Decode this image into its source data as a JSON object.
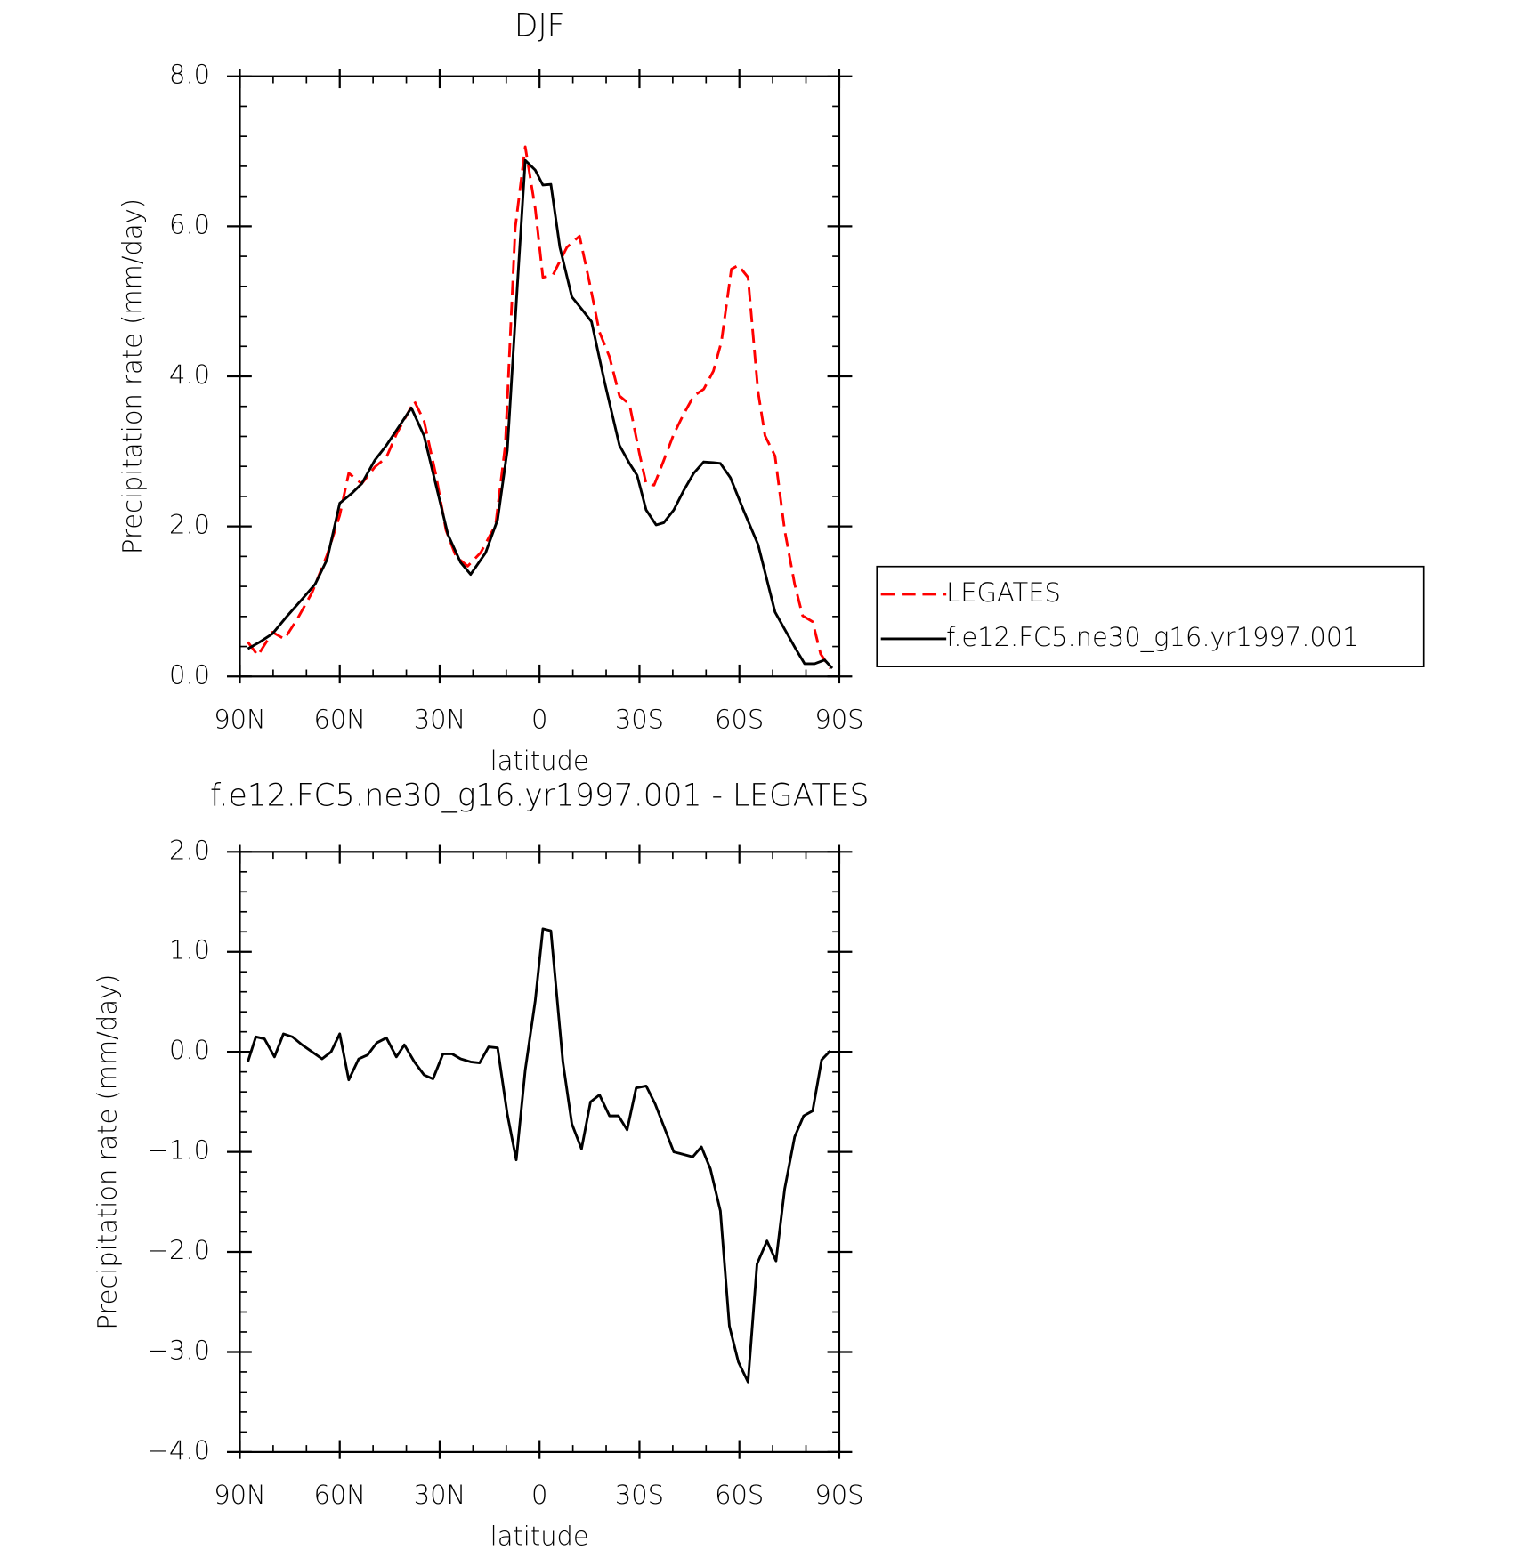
{
  "chart_data": [
    {
      "type": "line",
      "title": "DJF",
      "xlabel": "latitude",
      "ylabel": "Precipitation rate (mm/day)",
      "xlim": [
        90,
        -90
      ],
      "xticks": [
        {
          "value": 90,
          "label": "90N"
        },
        {
          "value": 60,
          "label": "60N"
        },
        {
          "value": 30,
          "label": "30N"
        },
        0,
        {
          "value": -30,
          "label": "30S"
        },
        {
          "value": -60,
          "label": "60S"
        },
        {
          "value": -90,
          "label": "90S"
        }
      ],
      "ylim": [
        0,
        8
      ],
      "yticks": [
        {
          "value": 0,
          "label": "0.0"
        },
        {
          "value": 2,
          "label": "2.0"
        },
        {
          "value": 4,
          "label": "4.0"
        },
        {
          "value": 6,
          "label": "6.0"
        },
        {
          "value": 8,
          "label": "8.0"
        }
      ],
      "legend": "right",
      "series": [
        {
          "name": "LEGATES",
          "color": "#ff0000",
          "dashed": true,
          "x": [
            87.6,
            84.6,
            80.2,
            76.6,
            72.7,
            68.3,
            63.8,
            60,
            57.3,
            53.4,
            49.5,
            46,
            43,
            37.6,
            34.7,
            31.1,
            28.1,
            25.1,
            21.6,
            17.7,
            13.2,
            10.3,
            7.3,
            4.3,
            1.3,
            -1,
            -4,
            -8.2,
            -12,
            -15,
            -18,
            -21,
            -24,
            -27,
            -30,
            -32,
            -34.4,
            -37.3,
            -40.3,
            -43.3,
            -46.3,
            -49.3,
            -52.2,
            -54.6,
            -57.6,
            -59.7,
            -62.6,
            -65.6,
            -67.7,
            -70.7,
            -73.6,
            -76.6,
            -79,
            -82,
            -84.4,
            -87.3
          ],
          "values": [
            0.46,
            0.28,
            0.59,
            0.5,
            0.77,
            1.12,
            1.62,
            2.15,
            2.71,
            2.57,
            2.79,
            2.92,
            3.23,
            3.67,
            3.41,
            2.68,
            1.95,
            1.6,
            1.47,
            1.65,
            2.02,
            3.08,
            5.98,
            7.06,
            6.24,
            5.32,
            5.35,
            5.72,
            5.87,
            5.25,
            4.59,
            4.26,
            3.74,
            3.63,
            2.97,
            2.57,
            2.55,
            2.88,
            3.23,
            3.5,
            3.74,
            3.83,
            4.07,
            4.46,
            5.43,
            5.48,
            5.32,
            3.8,
            3.21,
            2.94,
            1.95,
            1.23,
            0.81,
            0.73,
            0.3,
            0.11
          ]
        },
        {
          "name": "f.e12.FC5.ne30_g16.yr1997.001",
          "color": "#000000",
          "dashed": false,
          "x": [
            87.6,
            84,
            80.2,
            75.7,
            71.3,
            67.4,
            63.8,
            60,
            56.4,
            53.4,
            49.5,
            46,
            42.1,
            38.5,
            34.7,
            31.1,
            27.5,
            23.7,
            20.7,
            16.2,
            12.6,
            9.7,
            6.7,
            4.3,
            1.3,
            -1,
            -3.4,
            -6.1,
            -9.7,
            -12.6,
            -15.6,
            -19.5,
            -24,
            -27,
            -29.3,
            -32,
            -35,
            -37.3,
            -40.3,
            -43.3,
            -46.3,
            -49.3,
            -52.2,
            -54.3,
            -57.3,
            -61.2,
            -65.6,
            -70.7,
            -73.6,
            -76.9,
            -79.6,
            -82.6,
            -85.6,
            -87.9
          ],
          "values": [
            0.37,
            0.46,
            0.57,
            0.81,
            1.03,
            1.23,
            1.56,
            2.31,
            2.44,
            2.57,
            2.88,
            3.08,
            3.34,
            3.58,
            3.21,
            2.55,
            1.89,
            1.52,
            1.36,
            1.65,
            2.09,
            3.01,
            5.19,
            6.88,
            6.75,
            6.55,
            6.56,
            5.72,
            5.06,
            4.9,
            4.73,
            3.93,
            3.08,
            2.84,
            2.68,
            2.22,
            2.02,
            2.05,
            2.22,
            2.48,
            2.71,
            2.86,
            2.85,
            2.84,
            2.65,
            2.22,
            1.76,
            0.86,
            0.63,
            0.37,
            0.17,
            0.17,
            0.22,
            0.11
          ]
        }
      ]
    },
    {
      "type": "line",
      "title": "f.e12.FC5.ne30_g16.yr1997.001 - LEGATES",
      "xlabel": "latitude",
      "ylabel": "Precipitation rate (mm/day)",
      "xlim": [
        90,
        -90
      ],
      "xticks": [
        {
          "value": 90,
          "label": "90N"
        },
        {
          "value": 60,
          "label": "60N"
        },
        {
          "value": 30,
          "label": "30N"
        },
        0,
        {
          "value": -30,
          "label": "30S"
        },
        {
          "value": -60,
          "label": "60S"
        },
        {
          "value": -90,
          "label": "90S"
        }
      ],
      "ylim": [
        -4,
        2
      ],
      "yticks": [
        {
          "value": 2,
          "label": "2.0"
        },
        {
          "value": 1,
          "label": "1.0"
        },
        {
          "value": 0,
          "label": "0.0"
        },
        {
          "value": -1,
          "label": "−1.0"
        },
        {
          "value": -2,
          "label": "−2.0"
        },
        {
          "value": -3,
          "label": "−3.0"
        },
        {
          "value": -4,
          "label": "−4.0"
        }
      ],
      "color": "#000000",
      "x": [
        87.6,
        85.2,
        82.6,
        79.6,
        76.9,
        74.2,
        71.3,
        68.3,
        65.3,
        62.6,
        60,
        57.3,
        54.3,
        51.6,
        48.9,
        46,
        43,
        40.6,
        37.6,
        34.7,
        32,
        29,
        26.3,
        23.7,
        20.7,
        18,
        15.3,
        12.6,
        9.7,
        7,
        4.3,
        1.3,
        -1,
        -3.4,
        -7,
        -9.7,
        -12.6,
        -15.3,
        -18,
        -21,
        -23.7,
        -26.3,
        -29,
        -32,
        -34.7,
        -40.3,
        -46,
        -48.6,
        -51.3,
        -54.3,
        -57,
        -59.7,
        -62.6,
        -65.3,
        -68.3,
        -71,
        -73.6,
        -76.6,
        -79.3,
        -82,
        -84.7,
        -87.3
      ],
      "values": [
        -0.1,
        0.15,
        0.13,
        -0.05,
        0.18,
        0.15,
        0.07,
        0,
        -0.07,
        0,
        0.18,
        -0.28,
        -0.07,
        -0.03,
        0.09,
        0.14,
        -0.05,
        0.07,
        -0.1,
        -0.23,
        -0.27,
        -0.02,
        -0.02,
        -0.07,
        -0.1,
        -0.11,
        0.05,
        0.04,
        -0.62,
        -1.08,
        -0.18,
        0.51,
        1.23,
        1.21,
        -0.1,
        -0.72,
        -0.97,
        -0.5,
        -0.43,
        -0.64,
        -0.64,
        -0.78,
        -0.36,
        -0.34,
        -0.52,
        -1,
        -1.05,
        -0.95,
        -1.17,
        -1.59,
        -2.74,
        -3.1,
        -3.3,
        -2.12,
        -1.89,
        -2.09,
        -1.37,
        -0.85,
        -0.64,
        -0.59,
        -0.08,
        0.01
      ]
    }
  ]
}
